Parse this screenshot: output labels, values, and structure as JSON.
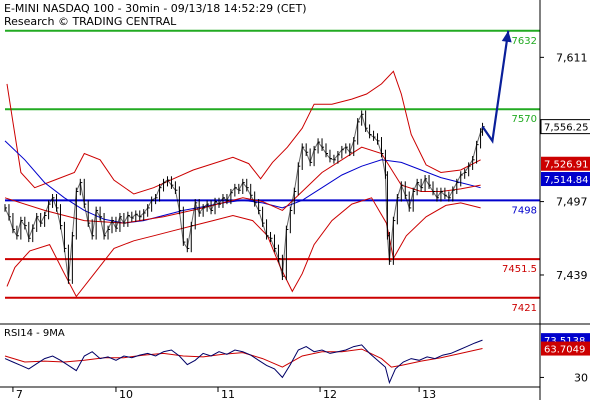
{
  "header": {
    "line1": "E-MINI NASDAQ 100 - 30min - 09/13/18 14:52:29 (CET)",
    "line2": "Research © TRADING CENTRAL"
  },
  "chart_data": {
    "type": "line",
    "instrument": "E-MINI NASDAQ 100",
    "timeframe": "30min",
    "grid": false,
    "price_panel": {
      "yrange": [
        7405,
        7650
      ],
      "y_ticks": [
        {
          "value": 7611,
          "label": "7,611"
        },
        {
          "value": 7497,
          "label": "7,497"
        },
        {
          "value": 7439,
          "label": "7,439"
        }
      ],
      "last_price": {
        "value": 7556.25,
        "label": "7,556.25"
      },
      "markers": [
        {
          "value": 7526.91,
          "label": "7,526.91",
          "color": "#cc0000"
        },
        {
          "value": 7514.84,
          "label": "7,514.84",
          "color": "#0000cc"
        }
      ],
      "horizontal_levels": [
        {
          "value": 7632,
          "label": "7632",
          "color": "#22aa22"
        },
        {
          "value": 7570,
          "label": "7570",
          "color": "#22aa22"
        },
        {
          "value": 7498,
          "label": "7498",
          "color": "#0000cc"
        },
        {
          "value": 7451.5,
          "label": "7451.5",
          "color": "#cc0000"
        },
        {
          "value": 7421,
          "label": "7421",
          "color": "#cc0000"
        }
      ],
      "price_series": [
        [
          0,
          7492
        ],
        [
          4,
          7485
        ],
        [
          8,
          7475
        ],
        [
          12,
          7470
        ],
        [
          16,
          7482
        ],
        [
          20,
          7478
        ],
        [
          24,
          7468
        ],
        [
          28,
          7476
        ],
        [
          32,
          7485
        ],
        [
          36,
          7480
        ],
        [
          40,
          7486
        ],
        [
          44,
          7495
        ],
        [
          48,
          7500
        ],
        [
          52,
          7492
        ],
        [
          56,
          7478
        ],
        [
          60,
          7460
        ],
        [
          64,
          7435
        ],
        [
          68,
          7470
        ],
        [
          72,
          7505
        ],
        [
          76,
          7512
        ],
        [
          80,
          7495
        ],
        [
          84,
          7480
        ],
        [
          88,
          7470
        ],
        [
          92,
          7490
        ],
        [
          96,
          7485
        ],
        [
          100,
          7470
        ],
        [
          104,
          7475
        ],
        [
          108,
          7482
        ],
        [
          112,
          7476
        ],
        [
          116,
          7485
        ],
        [
          120,
          7480
        ],
        [
          124,
          7486
        ],
        [
          128,
          7484
        ],
        [
          132,
          7487
        ],
        [
          136,
          7485
        ],
        [
          140,
          7488
        ],
        [
          144,
          7492
        ],
        [
          148,
          7498
        ],
        [
          152,
          7500
        ],
        [
          156,
          7508
        ],
        [
          160,
          7512
        ],
        [
          164,
          7514
        ],
        [
          168,
          7510
        ],
        [
          172,
          7506
        ],
        [
          176,
          7490
        ],
        [
          180,
          7465
        ],
        [
          184,
          7460
        ],
        [
          188,
          7478
        ],
        [
          192,
          7496
        ],
        [
          196,
          7488
        ],
        [
          200,
          7492
        ],
        [
          204,
          7495
        ],
        [
          208,
          7490
        ],
        [
          212,
          7497
        ],
        [
          216,
          7495
        ],
        [
          220,
          7500
        ],
        [
          224,
          7498
        ],
        [
          228,
          7504
        ],
        [
          232,
          7508
        ],
        [
          236,
          7506
        ],
        [
          240,
          7512
        ],
        [
          244,
          7508
        ],
        [
          248,
          7502
        ],
        [
          252,
          7496
        ],
        [
          256,
          7490
        ],
        [
          260,
          7480
        ],
        [
          264,
          7470
        ],
        [
          268,
          7468
        ],
        [
          272,
          7460
        ],
        [
          276,
          7452
        ],
        [
          280,
          7438
        ],
        [
          284,
          7475
        ],
        [
          288,
          7490
        ],
        [
          292,
          7505
        ],
        [
          296,
          7525
        ],
        [
          300,
          7540
        ],
        [
          304,
          7536
        ],
        [
          308,
          7528
        ],
        [
          312,
          7538
        ],
        [
          316,
          7544
        ],
        [
          320,
          7540
        ],
        [
          324,
          7535
        ],
        [
          328,
          7531
        ],
        [
          332,
          7530
        ],
        [
          336,
          7534
        ],
        [
          340,
          7538
        ],
        [
          344,
          7540
        ],
        [
          348,
          7536
        ],
        [
          352,
          7545
        ],
        [
          356,
          7560
        ],
        [
          360,
          7566
        ],
        [
          364,
          7555
        ],
        [
          368,
          7550
        ],
        [
          372,
          7548
        ],
        [
          376,
          7545
        ],
        [
          380,
          7535
        ],
        [
          384,
          7518
        ],
        [
          386,
          7470
        ],
        [
          388,
          7450
        ],
        [
          392,
          7482
        ],
        [
          396,
          7500
        ],
        [
          400,
          7510
        ],
        [
          404,
          7502
        ],
        [
          408,
          7492
        ],
        [
          412,
          7505
        ],
        [
          416,
          7512
        ],
        [
          420,
          7508
        ],
        [
          424,
          7515
        ],
        [
          428,
          7510
        ],
        [
          432,
          7505
        ],
        [
          436,
          7500
        ],
        [
          440,
          7505
        ],
        [
          444,
          7502
        ],
        [
          448,
          7500
        ],
        [
          452,
          7506
        ],
        [
          456,
          7512
        ],
        [
          460,
          7518
        ],
        [
          464,
          7520
        ],
        [
          468,
          7525
        ],
        [
          472,
          7530
        ],
        [
          476,
          7542
        ],
        [
          480,
          7552
        ],
        [
          482,
          7556.25
        ]
      ],
      "moving_average_red": [
        [
          0,
          7500
        ],
        [
          40,
          7490
        ],
        [
          80,
          7482
        ],
        [
          120,
          7480
        ],
        [
          160,
          7485
        ],
        [
          200,
          7492
        ],
        [
          240,
          7500
        ],
        [
          260,
          7497
        ],
        [
          280,
          7490
        ],
        [
          300,
          7505
        ],
        [
          320,
          7520
        ],
        [
          340,
          7530
        ],
        [
          360,
          7540
        ],
        [
          380,
          7535
        ],
        [
          400,
          7510
        ],
        [
          420,
          7505
        ],
        [
          440,
          7505
        ],
        [
          460,
          7507
        ],
        [
          480,
          7510
        ]
      ],
      "moving_average_blue": [
        [
          0,
          7545
        ],
        [
          20,
          7530
        ],
        [
          40,
          7512
        ],
        [
          60,
          7500
        ],
        [
          80,
          7490
        ],
        [
          100,
          7483
        ],
        [
          120,
          7480
        ],
        [
          140,
          7482
        ],
        [
          160,
          7486
        ],
        [
          180,
          7490
        ],
        [
          200,
          7493
        ],
        [
          220,
          7496
        ],
        [
          240,
          7498
        ],
        [
          260,
          7496
        ],
        [
          280,
          7492
        ],
        [
          300,
          7498
        ],
        [
          320,
          7508
        ],
        [
          340,
          7518
        ],
        [
          360,
          7525
        ],
        [
          380,
          7530
        ],
        [
          400,
          7528
        ],
        [
          420,
          7522
        ],
        [
          440,
          7516
        ],
        [
          460,
          7512
        ],
        [
          480,
          7508
        ]
      ],
      "bollinger_upper": [
        [
          2,
          7590
        ],
        [
          8,
          7560
        ],
        [
          16,
          7520
        ],
        [
          30,
          7508
        ],
        [
          50,
          7514
        ],
        [
          70,
          7520
        ],
        [
          80,
          7535
        ],
        [
          96,
          7530
        ],
        [
          110,
          7514
        ],
        [
          130,
          7503
        ],
        [
          150,
          7508
        ],
        [
          170,
          7515
        ],
        [
          190,
          7522
        ],
        [
          210,
          7527
        ],
        [
          230,
          7532
        ],
        [
          246,
          7527
        ],
        [
          258,
          7515
        ],
        [
          270,
          7528
        ],
        [
          285,
          7540
        ],
        [
          300,
          7555
        ],
        [
          312,
          7574
        ],
        [
          330,
          7574
        ],
        [
          350,
          7578
        ],
        [
          365,
          7582
        ],
        [
          380,
          7590
        ],
        [
          392,
          7600
        ],
        [
          400,
          7582
        ],
        [
          410,
          7550
        ],
        [
          425,
          7526
        ],
        [
          440,
          7520
        ],
        [
          460,
          7522
        ],
        [
          480,
          7530
        ]
      ],
      "bollinger_lower": [
        [
          2,
          7430
        ],
        [
          10,
          7445
        ],
        [
          25,
          7458
        ],
        [
          45,
          7463
        ],
        [
          60,
          7440
        ],
        [
          72,
          7422
        ],
        [
          90,
          7440
        ],
        [
          110,
          7460
        ],
        [
          130,
          7466
        ],
        [
          150,
          7470
        ],
        [
          170,
          7474
        ],
        [
          190,
          7478
        ],
        [
          210,
          7482
        ],
        [
          230,
          7486
        ],
        [
          250,
          7482
        ],
        [
          265,
          7470
        ],
        [
          278,
          7445
        ],
        [
          290,
          7426
        ],
        [
          300,
          7440
        ],
        [
          312,
          7463
        ],
        [
          330,
          7482
        ],
        [
          350,
          7495
        ],
        [
          370,
          7500
        ],
        [
          385,
          7480
        ],
        [
          392,
          7452
        ],
        [
          405,
          7470
        ],
        [
          425,
          7485
        ],
        [
          445,
          7494
        ],
        [
          460,
          7496
        ],
        [
          480,
          7492
        ]
      ],
      "projection_arrow": [
        [
          482,
          7556.25
        ],
        [
          492,
          7545
        ],
        [
          508,
          7632
        ]
      ]
    },
    "rsi_panel": {
      "label": "RSI14 - 9MA",
      "yrange": [
        20,
        90
      ],
      "y_ticks": [
        {
          "value": 30,
          "label": "30"
        }
      ],
      "markers": [
        {
          "value": 73.5138,
          "label": "73.5138",
          "color": "#0000cc"
        },
        {
          "value": 63.7049,
          "label": "63.7049",
          "color": "#cc0000"
        }
      ],
      "rsi_series": [
        [
          0,
          52
        ],
        [
          8,
          48
        ],
        [
          16,
          44
        ],
        [
          24,
          40
        ],
        [
          32,
          46
        ],
        [
          40,
          52
        ],
        [
          48,
          55
        ],
        [
          56,
          50
        ],
        [
          64,
          44
        ],
        [
          72,
          38
        ],
        [
          80,
          55
        ],
        [
          88,
          60
        ],
        [
          96,
          52
        ],
        [
          104,
          54
        ],
        [
          112,
          50
        ],
        [
          120,
          55
        ],
        [
          128,
          53
        ],
        [
          136,
          56
        ],
        [
          144,
          58
        ],
        [
          152,
          55
        ],
        [
          160,
          60
        ],
        [
          168,
          62
        ],
        [
          176,
          55
        ],
        [
          184,
          45
        ],
        [
          192,
          50
        ],
        [
          200,
          58
        ],
        [
          208,
          55
        ],
        [
          216,
          60
        ],
        [
          224,
          57
        ],
        [
          232,
          62
        ],
        [
          240,
          60
        ],
        [
          248,
          56
        ],
        [
          256,
          50
        ],
        [
          264,
          44
        ],
        [
          272,
          40
        ],
        [
          280,
          30
        ],
        [
          288,
          45
        ],
        [
          296,
          62
        ],
        [
          304,
          66
        ],
        [
          312,
          60
        ],
        [
          320,
          62
        ],
        [
          328,
          58
        ],
        [
          336,
          60
        ],
        [
          344,
          62
        ],
        [
          352,
          66
        ],
        [
          360,
          68
        ],
        [
          368,
          58
        ],
        [
          376,
          50
        ],
        [
          384,
          42
        ],
        [
          388,
          24
        ],
        [
          394,
          40
        ],
        [
          402,
          48
        ],
        [
          410,
          52
        ],
        [
          418,
          50
        ],
        [
          426,
          54
        ],
        [
          434,
          52
        ],
        [
          442,
          56
        ],
        [
          450,
          58
        ],
        [
          458,
          62
        ],
        [
          466,
          66
        ],
        [
          474,
          70
        ],
        [
          482,
          73.5
        ]
      ],
      "rsi_ma": [
        [
          0,
          55
        ],
        [
          20,
          48
        ],
        [
          40,
          49
        ],
        [
          60,
          48
        ],
        [
          80,
          50
        ],
        [
          100,
          53
        ],
        [
          120,
          53
        ],
        [
          140,
          56
        ],
        [
          160,
          58
        ],
        [
          180,
          55
        ],
        [
          200,
          54
        ],
        [
          220,
          57
        ],
        [
          240,
          59
        ],
        [
          260,
          52
        ],
        [
          280,
          42
        ],
        [
          300,
          55
        ],
        [
          320,
          60
        ],
        [
          340,
          60
        ],
        [
          360,
          63
        ],
        [
          380,
          52
        ],
        [
          390,
          42
        ],
        [
          400,
          44
        ],
        [
          420,
          49
        ],
        [
          440,
          53
        ],
        [
          460,
          58
        ],
        [
          482,
          63.7
        ]
      ]
    },
    "x_axis": {
      "domain": [
        0,
        540
      ],
      "ticks": [
        {
          "at": 8,
          "label": "7"
        },
        {
          "at": 112,
          "label": "10"
        },
        {
          "at": 215,
          "label": "11"
        },
        {
          "at": 318,
          "label": "12"
        },
        {
          "at": 418,
          "label": "13"
        }
      ]
    },
    "colors": {
      "price": "#000000",
      "ma_red": "#cc0000",
      "ma_blue": "#0000cc",
      "bollinger": "#cc0000",
      "arrow": "#0a1f9a",
      "rsi": "#000066",
      "rsi_ma": "#cc0000"
    }
  }
}
